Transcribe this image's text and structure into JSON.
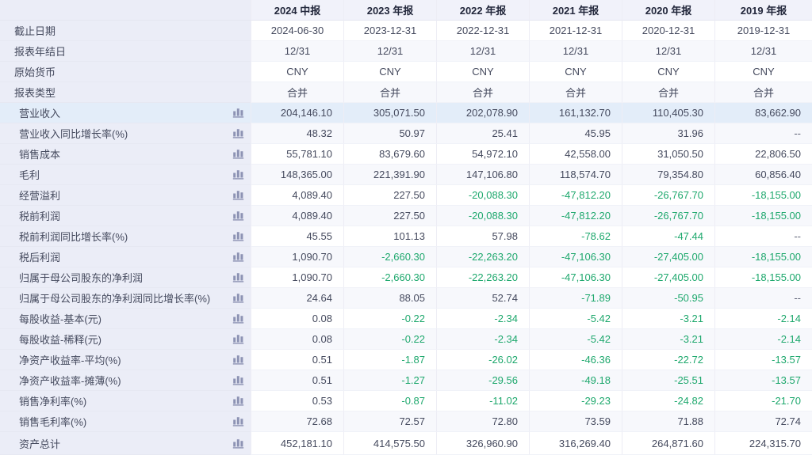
{
  "table": {
    "columns": [
      "2024 中报",
      "2023 年报",
      "2022 年报",
      "2021 年报",
      "2020 年报",
      "2019 年报"
    ],
    "info_rows": [
      {
        "label": "截止日期",
        "values": [
          "2024-06-30",
          "2023-12-31",
          "2022-12-31",
          "2021-12-31",
          "2020-12-31",
          "2019-12-31"
        ]
      },
      {
        "label": "报表年结日",
        "values": [
          "12/31",
          "12/31",
          "12/31",
          "12/31",
          "12/31",
          "12/31"
        ]
      },
      {
        "label": "原始货币",
        "values": [
          "CNY",
          "CNY",
          "CNY",
          "CNY",
          "CNY",
          "CNY"
        ]
      },
      {
        "label": "报表类型",
        "values": [
          "合并",
          "合并",
          "合并",
          "合并",
          "合并",
          "合并"
        ]
      }
    ],
    "metric_rows": [
      {
        "label": "营业收入",
        "highlighted": true,
        "values": [
          "204,146.10",
          "305,071.50",
          "202,078.90",
          "161,132.70",
          "110,405.30",
          "83,662.90"
        ]
      },
      {
        "label": "营业收入同比增长率(%)",
        "values": [
          "48.32",
          "50.97",
          "25.41",
          "45.95",
          "31.96",
          "--"
        ]
      },
      {
        "label": "销售成本",
        "values": [
          "55,781.10",
          "83,679.60",
          "54,972.10",
          "42,558.00",
          "31,050.50",
          "22,806.50"
        ]
      },
      {
        "label": "毛利",
        "values": [
          "148,365.00",
          "221,391.90",
          "147,106.80",
          "118,574.70",
          "79,354.80",
          "60,856.40"
        ]
      },
      {
        "label": "经营溢利",
        "values": [
          "4,089.40",
          "227.50",
          "-20,088.30",
          "-47,812.20",
          "-26,767.70",
          "-18,155.00"
        ]
      },
      {
        "label": "税前利润",
        "values": [
          "4,089.40",
          "227.50",
          "-20,088.30",
          "-47,812.20",
          "-26,767.70",
          "-18,155.00"
        ]
      },
      {
        "label": "税前利润同比增长率(%)",
        "values": [
          "45.55",
          "101.13",
          "57.98",
          "-78.62",
          "-47.44",
          "--"
        ]
      },
      {
        "label": "税后利润",
        "values": [
          "1,090.70",
          "-2,660.30",
          "-22,263.20",
          "-47,106.30",
          "-27,405.00",
          "-18,155.00"
        ]
      },
      {
        "label": "归属于母公司股东的净利润",
        "values": [
          "1,090.70",
          "-2,660.30",
          "-22,263.20",
          "-47,106.30",
          "-27,405.00",
          "-18,155.00"
        ]
      },
      {
        "label": "归属于母公司股东的净利润同比增长率(%)",
        "values": [
          "24.64",
          "88.05",
          "52.74",
          "-71.89",
          "-50.95",
          "--"
        ]
      },
      {
        "label": "每股收益-基本(元)",
        "values": [
          "0.08",
          "-0.22",
          "-2.34",
          "-5.42",
          "-3.21",
          "-2.14"
        ]
      },
      {
        "label": "每股收益-稀释(元)",
        "values": [
          "0.08",
          "-0.22",
          "-2.34",
          "-5.42",
          "-3.21",
          "-2.14"
        ]
      },
      {
        "label": "净资产收益率-平均(%)",
        "values": [
          "0.51",
          "-1.87",
          "-26.02",
          "-46.36",
          "-22.72",
          "-13.57"
        ]
      },
      {
        "label": "净资产收益率-摊薄(%)",
        "values": [
          "0.51",
          "-1.27",
          "-29.56",
          "-49.18",
          "-25.51",
          "-13.57"
        ]
      },
      {
        "label": "销售净利率(%)",
        "values": [
          "0.53",
          "-0.87",
          "-11.02",
          "-29.23",
          "-24.82",
          "-21.70"
        ]
      },
      {
        "label": "销售毛利率(%)",
        "values": [
          "72.68",
          "72.57",
          "72.80",
          "73.59",
          "71.88",
          "72.74"
        ]
      },
      {
        "label": "资产总计",
        "values": [
          "452,181.10",
          "414,575.50",
          "326,960.90",
          "316,269.40",
          "264,871.60",
          "224,315.70"
        ]
      }
    ],
    "icon_name": "bar-chart-icon",
    "na_text": "--"
  },
  "colors": {
    "label_bg": "#ebedf7",
    "stripe_bg": "#f7f8fc",
    "highlight_bg": "#e3edf9",
    "negative_text": "#1ea86d",
    "header_text": "#23283c",
    "body_text": "#454a5e",
    "icon": "#8d93b4"
  }
}
